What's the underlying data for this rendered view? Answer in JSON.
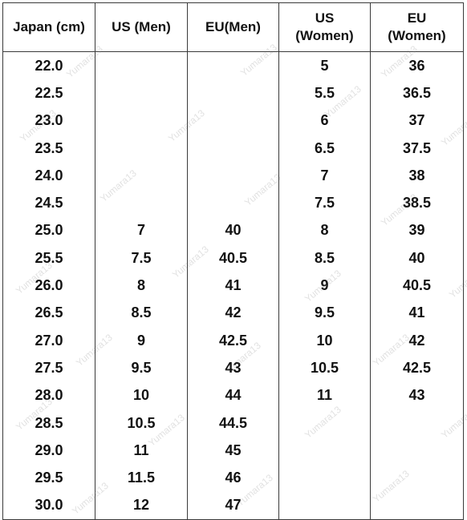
{
  "chart_data": {
    "type": "table",
    "headers": [
      "Japan (cm)",
      "US (Men)",
      "EU(Men)",
      "US\n(Women)",
      "EU\n(Women)"
    ],
    "rows": [
      [
        "22.0",
        "",
        "",
        "5",
        "36"
      ],
      [
        "22.5",
        "",
        "",
        "5.5",
        "36.5"
      ],
      [
        "23.0",
        "",
        "",
        "6",
        "37"
      ],
      [
        "23.5",
        "",
        "",
        "6.5",
        "37.5"
      ],
      [
        "24.0",
        "",
        "",
        "7",
        "38"
      ],
      [
        "24.5",
        "",
        "",
        "7.5",
        "38.5"
      ],
      [
        "25.0",
        "7",
        "40",
        "8",
        "39"
      ],
      [
        "25.5",
        "7.5",
        "40.5",
        "8.5",
        "40"
      ],
      [
        "26.0",
        "8",
        "41",
        "9",
        "40.5"
      ],
      [
        "26.5",
        "8.5",
        "42",
        "9.5",
        "41"
      ],
      [
        "27.0",
        "9",
        "42.5",
        "10",
        "42"
      ],
      [
        "27.5",
        "9.5",
        "43",
        "10.5",
        "42.5"
      ],
      [
        "28.0",
        "10",
        "44",
        "11",
        "43"
      ],
      [
        "28.5",
        "10.5",
        "44.5",
        "",
        ""
      ],
      [
        "29.0",
        "11",
        "45",
        "",
        ""
      ],
      [
        "29.5",
        "11.5",
        "46",
        "",
        ""
      ],
      [
        "30.0",
        "12",
        "47",
        "",
        ""
      ]
    ]
  },
  "watermark": "Yumara13"
}
